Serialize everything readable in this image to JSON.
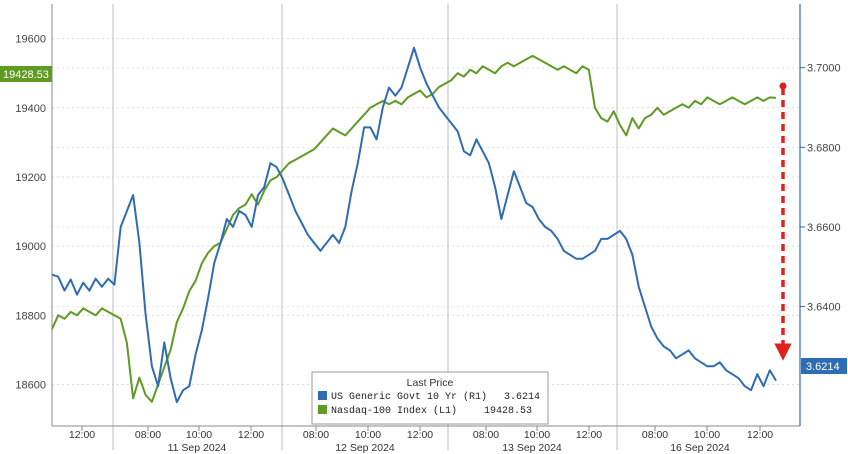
{
  "chart_data": {
    "type": "line",
    "title": "",
    "xlabel": "",
    "ylabel": "",
    "x_time_ticks": [
      "12:00",
      "08:00",
      "10:00",
      "12:00",
      "08:00",
      "10:00",
      "12:00",
      "08:00",
      "10:00",
      "12:00",
      "08:00",
      "10:00",
      "12:00"
    ],
    "x_date_labels": [
      "11 Sep 2024",
      "12 Sep 2024",
      "13 Sep 2024",
      "16 Sep 2024"
    ],
    "y_left": {
      "ticks": [
        "18600",
        "18800",
        "19000",
        "19200",
        "19400",
        "19600"
      ],
      "ylim": [
        18480,
        19700
      ]
    },
    "y_right": {
      "ticks": [
        "3.6400",
        "3.6600",
        "3.6800",
        "3.7000"
      ],
      "ylim": [
        3.61,
        3.716
      ]
    },
    "series": [
      {
        "name": "US Generic Govt 10 Yr",
        "axis": "R1",
        "color": "#2e6db4",
        "last_price": "3.6214",
        "values": [
          3.648,
          3.6475,
          3.644,
          3.6468,
          3.643,
          3.646,
          3.644,
          3.647,
          3.645,
          3.647,
          3.6455,
          3.66,
          3.664,
          3.668,
          3.656,
          3.638,
          3.625,
          3.62,
          3.631,
          3.622,
          3.616,
          3.619,
          3.62,
          3.628,
          3.634,
          3.642,
          3.651,
          3.656,
          3.662,
          3.66,
          3.664,
          3.663,
          3.66,
          3.668,
          3.67,
          3.676,
          3.675,
          3.672,
          3.668,
          3.664,
          3.661,
          3.658,
          3.656,
          3.654,
          3.656,
          3.658,
          3.656,
          3.66,
          3.669,
          3.676,
          3.685,
          3.685,
          3.682,
          3.69,
          3.695,
          3.693,
          3.695,
          3.7,
          3.705,
          3.7,
          3.696,
          3.693,
          3.69,
          3.688,
          3.686,
          3.684,
          3.679,
          3.678,
          3.682,
          3.679,
          3.676,
          3.67,
          3.662,
          3.668,
          3.674,
          3.67,
          3.666,
          3.665,
          3.662,
          3.66,
          3.659,
          3.657,
          3.654,
          3.653,
          3.652,
          3.652,
          3.653,
          3.654,
          3.657,
          3.657,
          3.658,
          3.659,
          3.657,
          3.653,
          3.645,
          3.64,
          3.635,
          3.632,
          3.63,
          3.629,
          3.627,
          3.628,
          3.629,
          3.627,
          3.626,
          3.625,
          3.625,
          3.626,
          3.624,
          3.623,
          3.622,
          3.62,
          3.619,
          3.623,
          3.62,
          3.624,
          3.6214
        ]
      },
      {
        "name": "Nasdaq-100 Index",
        "axis": "L1",
        "color": "#5f9a22",
        "last_price": "19428.53",
        "values": [
          18760,
          18800,
          18790,
          18810,
          18800,
          18820,
          18810,
          18800,
          18820,
          18810,
          18800,
          18790,
          18720,
          18560,
          18620,
          18570,
          18550,
          18600,
          18650,
          18700,
          18780,
          18820,
          18870,
          18900,
          18950,
          18980,
          19000,
          19010,
          19050,
          19090,
          19110,
          19120,
          19150,
          19120,
          19160,
          19190,
          19200,
          19220,
          19240,
          19250,
          19260,
          19270,
          19280,
          19300,
          19320,
          19340,
          19330,
          19320,
          19340,
          19360,
          19380,
          19400,
          19410,
          19420,
          19410,
          19420,
          19410,
          19430,
          19440,
          19450,
          19430,
          19440,
          19460,
          19470,
          19480,
          19500,
          19490,
          19510,
          19500,
          19520,
          19510,
          19500,
          19520,
          19530,
          19520,
          19530,
          19540,
          19550,
          19540,
          19530,
          19520,
          19510,
          19520,
          19510,
          19500,
          19520,
          19510,
          19400,
          19370,
          19360,
          19390,
          19350,
          19320,
          19370,
          19340,
          19370,
          19380,
          19400,
          19380,
          19390,
          19400,
          19410,
          19400,
          19420,
          19410,
          19430,
          19420,
          19410,
          19420,
          19430,
          19420,
          19410,
          19420,
          19430,
          19420,
          19430,
          19428.53
        ]
      }
    ],
    "legend": {
      "title": "Last Price",
      "placement": "bottom-center",
      "entries": [
        {
          "label": "US Generic Govt 10 Yr  (R1)",
          "value": "3.6214",
          "color": "#2e6db4"
        },
        {
          "label": "Nasdaq-100 Index  (L1)",
          "value": "19428.53",
          "color": "#5f9a22"
        }
      ]
    },
    "badges": {
      "left": {
        "text": "19428.53",
        "color": "#5f9a22"
      },
      "right": {
        "text": "3.6214",
        "color": "#2e6db4"
      }
    },
    "annotation": {
      "type": "dashed-arrow-down",
      "color": "#e0201b"
    }
  }
}
